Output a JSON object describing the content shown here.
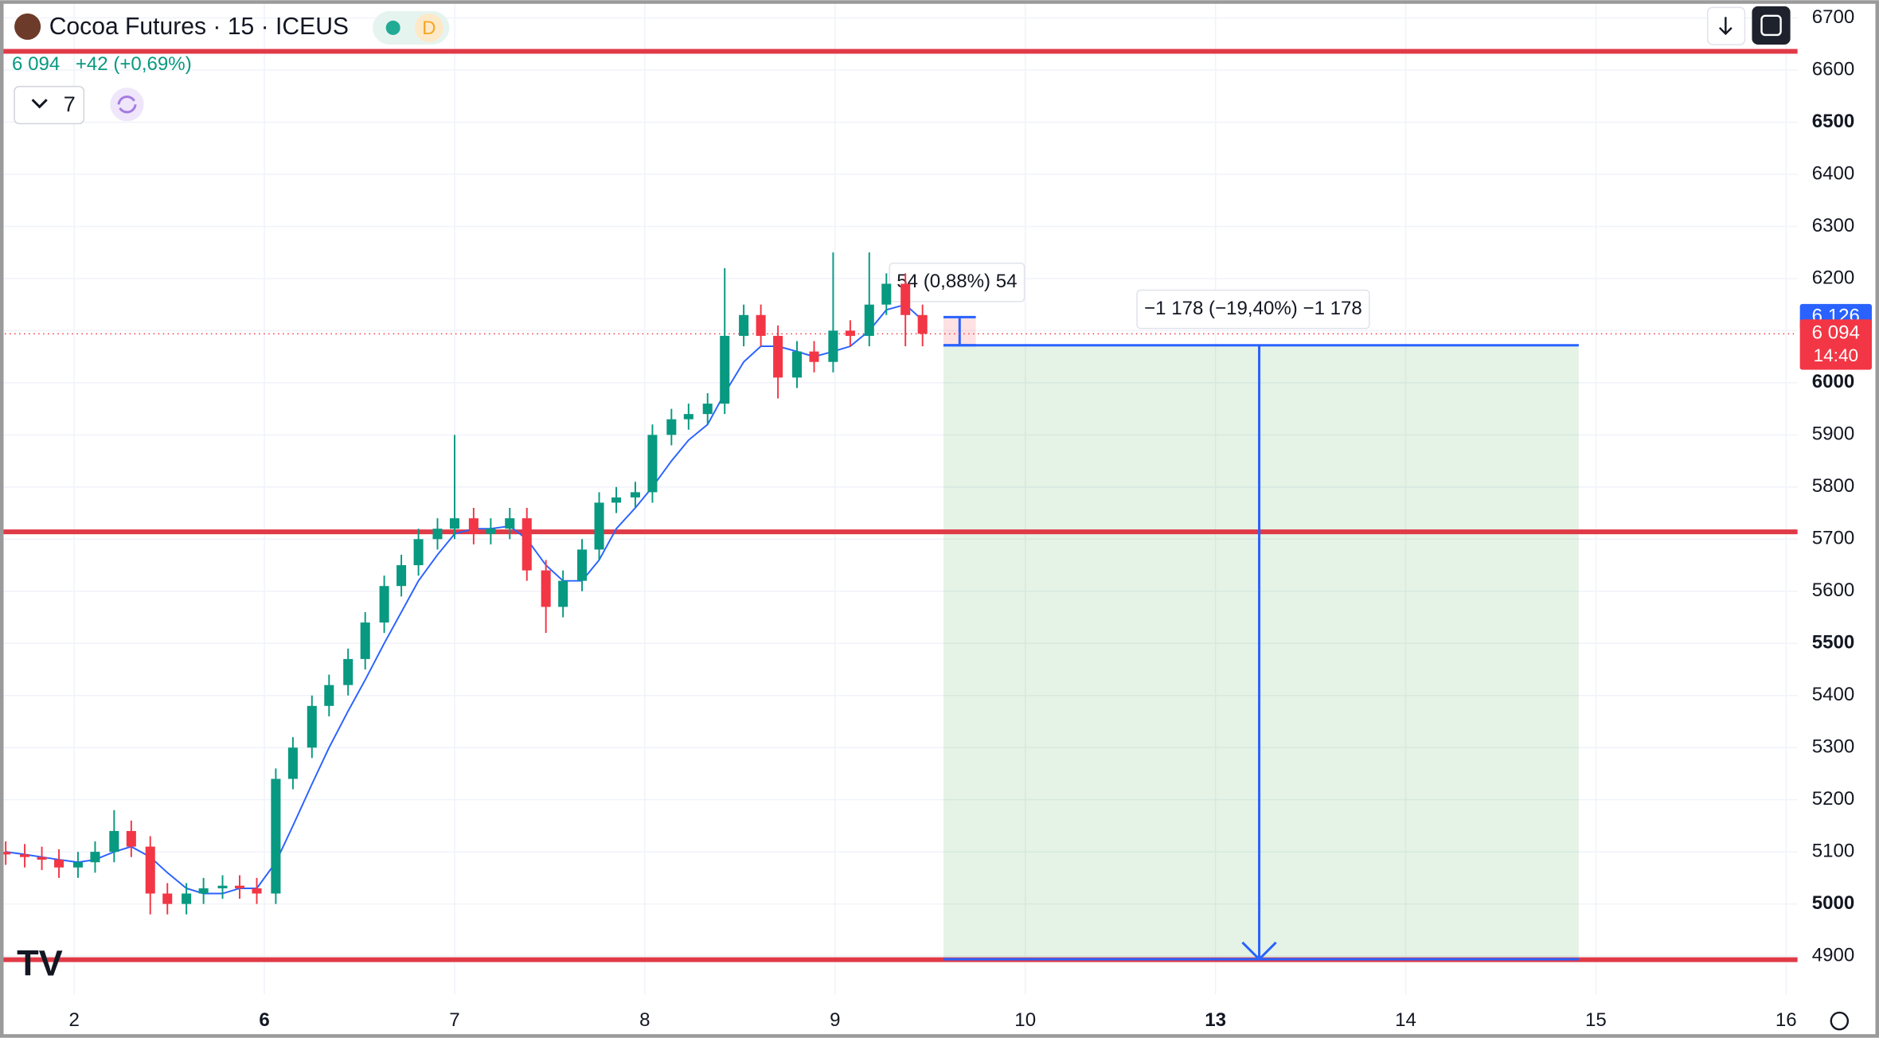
{
  "chart_data": {
    "type": "candlestick",
    "title": "Cocoa Futures · 15 · ICEUS",
    "interval_badge": "D",
    "quote": {
      "last": "6 094",
      "change": "+42 (+0,69%)"
    },
    "indicators_count": "7",
    "xlim": [
      -0.39,
      9.06
    ],
    "xticks": [
      {
        "value": 0,
        "label": "2"
      },
      {
        "value": 1,
        "label": "6"
      },
      {
        "value": 2,
        "label": "7"
      },
      {
        "value": 3,
        "label": "8"
      },
      {
        "value": 4,
        "label": "9"
      },
      {
        "value": 5,
        "label": "10"
      },
      {
        "value": 6,
        "label": "13"
      },
      {
        "value": 7,
        "label": "14"
      },
      {
        "value": 8,
        "label": "15"
      },
      {
        "value": 9,
        "label": "16"
      }
    ],
    "bold_xticks": [
      1,
      6
    ],
    "ylim": [
      4826,
      6734
    ],
    "yticks": [
      4900,
      5000,
      5100,
      5200,
      5300,
      5400,
      5500,
      5600,
      5700,
      5800,
      5900,
      6000,
      6100,
      6200,
      6300,
      6400,
      6500,
      6600,
      6700
    ],
    "bold_yticks": [
      5000,
      5500,
      6000,
      6500
    ],
    "grid": true,
    "up_color": "#089981",
    "down_color": "#f23645",
    "x": [
      -0.36,
      -0.26,
      -0.17,
      -0.08,
      0.02,
      0.11,
      0.21,
      0.3,
      0.4,
      0.49,
      0.59,
      0.68,
      0.78,
      0.87,
      0.96,
      1.06,
      1.15,
      1.25,
      1.34,
      1.44,
      1.53,
      1.63,
      1.72,
      1.81,
      1.91,
      2.0,
      2.1,
      2.19,
      2.29,
      2.38,
      2.48,
      2.57,
      2.67,
      2.76,
      2.85,
      2.95,
      3.04,
      3.14,
      3.23,
      3.33,
      3.42,
      3.52,
      3.61,
      3.7,
      3.8,
      3.89,
      3.99,
      4.08,
      4.18,
      4.27,
      4.37,
      4.46
    ],
    "open": [
      5100,
      5095,
      5090,
      5085,
      5070,
      5080,
      5100,
      5140,
      5110,
      5020,
      5000,
      5020,
      5030,
      5035,
      5030,
      5020,
      5240,
      5300,
      5380,
      5420,
      5470,
      5540,
      5610,
      5650,
      5700,
      5720,
      5740,
      5710,
      5720,
      5740,
      5640,
      5570,
      5620,
      5680,
      5770,
      5780,
      5790,
      5900,
      5930,
      5940,
      5960,
      6090,
      6130,
      6090,
      6010,
      6060,
      6040,
      6100,
      6090,
      6150,
      6190,
      6130
    ],
    "high": [
      5120,
      5115,
      5110,
      5105,
      5100,
      5120,
      5180,
      5160,
      5130,
      5040,
      5040,
      5050,
      5055,
      5055,
      5050,
      5260,
      5320,
      5400,
      5440,
      5490,
      5560,
      5630,
      5670,
      5720,
      5740,
      5900,
      5760,
      5740,
      5760,
      5760,
      5660,
      5640,
      5700,
      5790,
      5800,
      5810,
      5920,
      5950,
      5960,
      5980,
      6220,
      6150,
      6150,
      6110,
      6080,
      6080,
      6250,
      6120,
      6250,
      6210,
      6210,
      6150
    ],
    "low": [
      5075,
      5070,
      5065,
      5050,
      5050,
      5060,
      5080,
      5090,
      4980,
      4980,
      4980,
      5000,
      5010,
      5010,
      5000,
      5000,
      5220,
      5280,
      5360,
      5400,
      5450,
      5520,
      5590,
      5630,
      5680,
      5700,
      5690,
      5690,
      5700,
      5620,
      5520,
      5550,
      5600,
      5660,
      5750,
      5760,
      5770,
      5880,
      5910,
      5920,
      5940,
      6070,
      6070,
      5970,
      5990,
      6020,
      6020,
      6070,
      6070,
      6130,
      6070,
      6070
    ],
    "close": [
      5095,
      5090,
      5085,
      5070,
      5080,
      5100,
      5140,
      5110,
      5020,
      5000,
      5020,
      5030,
      5035,
      5030,
      5020,
      5240,
      5300,
      5380,
      5420,
      5470,
      5540,
      5610,
      5650,
      5700,
      5720,
      5740,
      5710,
      5720,
      5740,
      5640,
      5570,
      5620,
      5680,
      5770,
      5780,
      5790,
      5900,
      5930,
      5940,
      5960,
      6090,
      6130,
      6090,
      6010,
      6060,
      6040,
      6100,
      6090,
      6150,
      6190,
      6130,
      6094
    ],
    "ma": {
      "color": "#2962ff",
      "values": [
        5100,
        5095,
        5090,
        5085,
        5080,
        5085,
        5100,
        5110,
        5090,
        5060,
        5030,
        5020,
        5020,
        5030,
        5030,
        5080,
        5150,
        5230,
        5300,
        5370,
        5430,
        5500,
        5560,
        5620,
        5670,
        5710,
        5720,
        5720,
        5725,
        5700,
        5650,
        5620,
        5620,
        5660,
        5720,
        5760,
        5800,
        5850,
        5890,
        5920,
        5980,
        6040,
        6070,
        6070,
        6060,
        6050,
        6060,
        6070,
        6100,
        6140,
        6150,
        6120
      ]
    },
    "hlines": {
      "color": "#e03a47",
      "values": [
        6636,
        5714,
        4893
      ]
    },
    "last_price": {
      "value": 6094,
      "label": "6 094",
      "countdown": "14:40"
    },
    "measure": {
      "x": [
        4.57,
        4.74
      ],
      "top": 6126,
      "bottom": 6072,
      "top_label": {
        "value": 6126,
        "label": "6 126"
      },
      "label": "54 (0,88%) 54"
    },
    "projection": {
      "x": [
        4.57,
        7.91
      ],
      "arrow_x": 6.23,
      "from": 6072,
      "to": 4894,
      "label": "−1 178 (−19,40%) −1 178"
    }
  }
}
